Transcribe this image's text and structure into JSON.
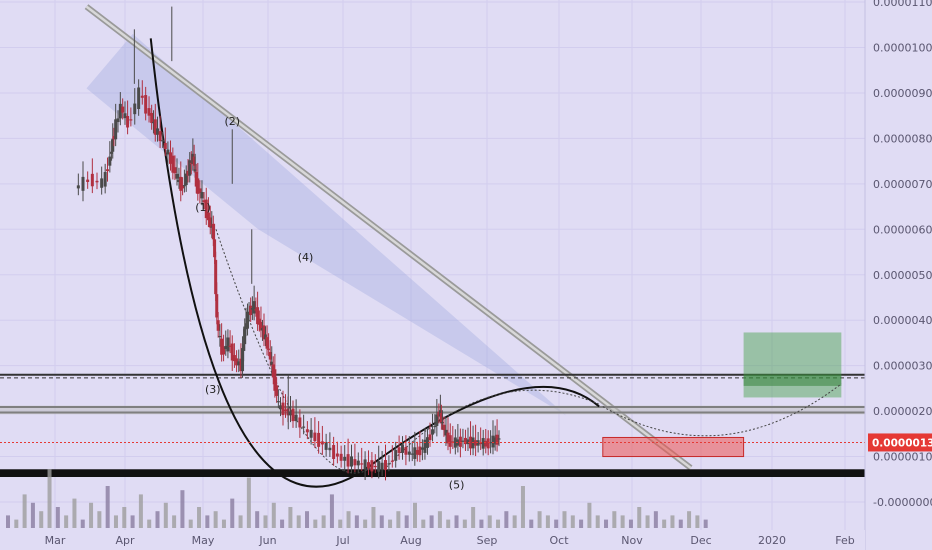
{
  "chart_data": {
    "type": "candlestick",
    "price_axis": {
      "ticks": [
        "0.00001100",
        "0.00001000",
        "0.00000900",
        "0.00000800",
        "0.00000700",
        "0.00000600",
        "0.00000500",
        "0.00000400",
        "0.00000300",
        "0.00000200",
        "0.00000100",
        "-0.00000000"
      ],
      "values": [
        1.1e-05,
        1e-05,
        9e-06,
        8e-06,
        7e-06,
        6e-06,
        5e-06,
        4e-06,
        3e-06,
        2e-06,
        1e-06,
        0
      ],
      "range": [
        -3e-07,
        1.11e-05
      ]
    },
    "time_axis": {
      "ticks": [
        "Mar",
        "Apr",
        "May",
        "Jun",
        "Jul",
        "Aug",
        "Sep",
        "Oct",
        "Nov",
        "Dec",
        "2020",
        "Feb"
      ]
    },
    "current_price": {
      "label": "0.00000131",
      "value": 1.31e-06,
      "color": "#e53935"
    },
    "wave_labels": [
      "(1)",
      "(2)",
      "(3)",
      "(4)",
      "(5)"
    ],
    "price_path": [
      [
        0.3,
        6.9
      ],
      [
        0.5,
        7.1
      ],
      [
        0.7,
        7.0
      ],
      [
        0.8,
        7.6
      ],
      [
        0.85,
        8.1
      ],
      [
        0.95,
        8.7
      ],
      [
        1.05,
        8.3
      ],
      [
        1.2,
        9.0
      ],
      [
        1.33,
        8.5
      ],
      [
        1.4,
        8.2
      ],
      [
        1.5,
        7.9
      ],
      [
        1.6,
        7.5
      ],
      [
        1.68,
        7.1
      ],
      [
        1.75,
        6.9
      ],
      [
        1.82,
        7.3
      ],
      [
        1.88,
        7.6
      ],
      [
        1.92,
        7.0
      ],
      [
        2.0,
        6.7
      ],
      [
        2.1,
        6.2
      ],
      [
        2.17,
        5.9
      ],
      [
        2.22,
        4.0
      ],
      [
        2.3,
        3.3
      ],
      [
        2.4,
        3.5
      ],
      [
        2.5,
        3.1
      ],
      [
        2.6,
        3.0
      ],
      [
        2.65,
        3.8
      ],
      [
        2.72,
        4.2
      ],
      [
        2.8,
        4.3
      ],
      [
        2.88,
        3.9
      ],
      [
        2.95,
        3.7
      ],
      [
        3.02,
        3.3
      ],
      [
        3.08,
        2.8
      ],
      [
        3.15,
        2.1
      ],
      [
        3.25,
        2.0
      ],
      [
        3.35,
        1.9
      ],
      [
        3.5,
        1.6
      ],
      [
        3.65,
        1.4
      ],
      [
        3.8,
        1.2
      ],
      [
        3.95,
        1.0
      ],
      [
        4.1,
        0.9
      ],
      [
        4.25,
        0.85
      ],
      [
        4.4,
        0.8
      ],
      [
        4.55,
        0.78
      ],
      [
        4.7,
        0.85
      ],
      [
        4.85,
        1.2
      ],
      [
        5.0,
        1.05
      ],
      [
        5.1,
        1.1
      ],
      [
        5.2,
        1.25
      ],
      [
        5.3,
        1.6
      ],
      [
        5.38,
        2.0
      ],
      [
        5.42,
        1.7
      ],
      [
        5.5,
        1.35
      ],
      [
        5.6,
        1.3
      ],
      [
        5.7,
        1.35
      ],
      [
        5.8,
        1.3
      ],
      [
        5.9,
        1.3
      ],
      [
        6.0,
        1.28
      ],
      [
        6.1,
        1.34
      ],
      [
        6.18,
        1.4
      ]
    ],
    "volume": [
      3,
      2,
      8,
      6,
      4,
      14,
      5,
      3,
      7,
      2,
      6,
      4,
      10,
      3,
      5,
      3,
      8,
      2,
      4,
      6,
      3,
      9,
      2,
      5,
      3,
      4,
      2,
      7,
      3,
      12,
      4,
      3,
      6,
      2,
      5,
      3,
      4,
      2,
      3,
      8,
      2,
      4,
      3,
      2,
      5,
      3,
      2,
      4,
      3,
      6,
      2,
      3,
      4,
      2,
      3,
      2,
      5,
      2,
      3,
      2,
      4,
      3,
      10,
      2,
      4,
      3,
      2,
      4,
      3,
      2,
      6,
      3,
      2,
      4,
      3,
      2,
      5,
      3,
      4,
      2,
      3,
      2,
      4,
      3,
      2
    ]
  },
  "colors": {
    "background": "#e0dcf4",
    "bull": "#4a4a4a",
    "bear": "#b03040",
    "trendline_fill": "#9aa5dd",
    "current_price_line": "#e53935",
    "support_band": "#111111",
    "target_box": "#43a047",
    "stop_box": "#ef5350"
  }
}
